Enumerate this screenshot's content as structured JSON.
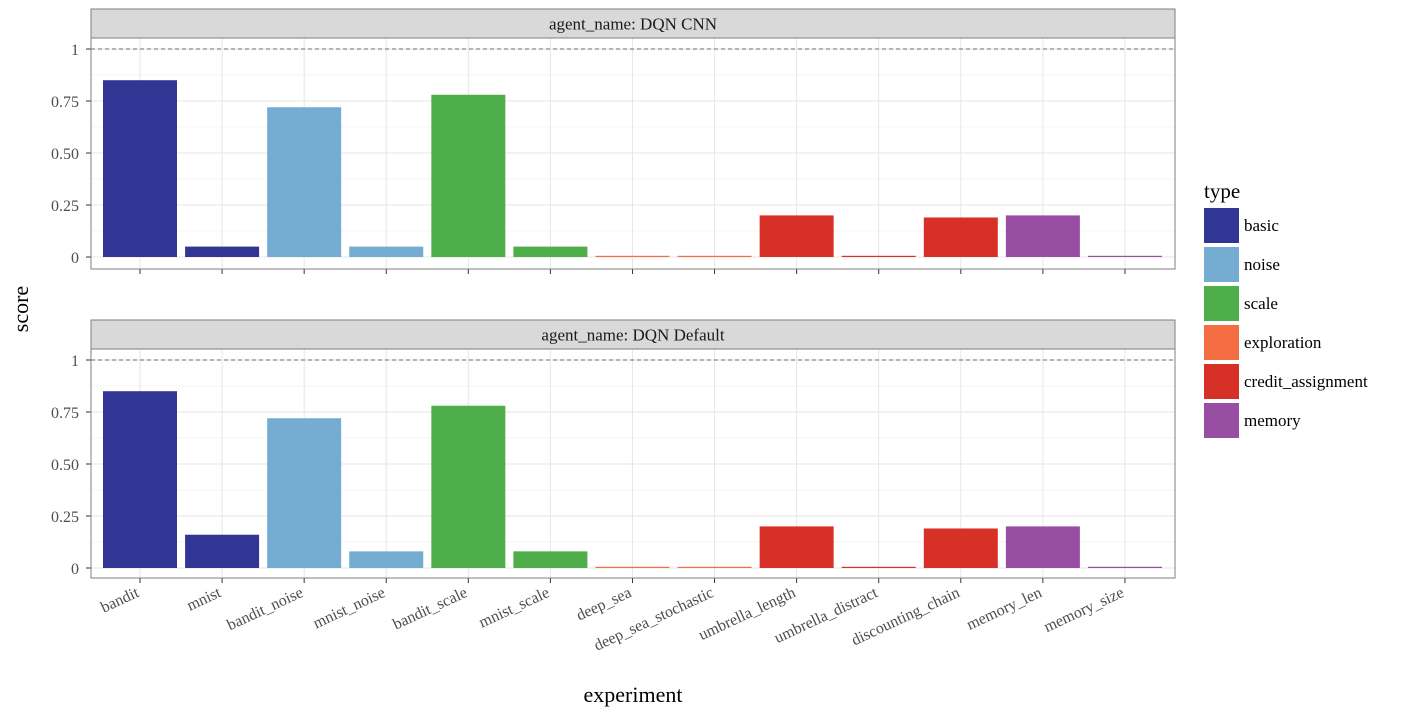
{
  "chart_data": {
    "type": "bar",
    "xlabel": "experiment",
    "ylabel": "score",
    "ylim": [
      0,
      1
    ],
    "yticks": [
      0,
      0.25,
      0.5,
      0.75,
      1
    ],
    "ytick_labels": [
      "0",
      "0.25",
      "0.50",
      "0.75",
      "1"
    ],
    "reference_line": 1,
    "grid": true,
    "legend": {
      "title": "type",
      "position": "right",
      "items": [
        {
          "label": "basic",
          "color": "#313695"
        },
        {
          "label": "noise",
          "color": "#74add1"
        },
        {
          "label": "scale",
          "color": "#4dae4a"
        },
        {
          "label": "exploration",
          "color": "#f46d43"
        },
        {
          "label": "credit_assignment",
          "color": "#d73027"
        },
        {
          "label": "memory",
          "color": "#984ea3"
        }
      ]
    },
    "categories": [
      "bandit",
      "mnist",
      "bandit_noise",
      "mnist_noise",
      "bandit_scale",
      "mnist_scale",
      "deep_sea",
      "deep_sea_stochastic",
      "umbrella_length",
      "umbrella_distract",
      "discounting_chain",
      "memory_len",
      "memory_size"
    ],
    "category_types": [
      "basic",
      "basic",
      "noise",
      "noise",
      "scale",
      "scale",
      "exploration",
      "exploration",
      "credit_assignment",
      "credit_assignment",
      "credit_assignment",
      "memory",
      "memory"
    ],
    "facets": [
      {
        "strip_label": "agent_name: DQN CNN",
        "values": [
          0.85,
          0.05,
          0.72,
          0.05,
          0.78,
          0.05,
          0.0,
          0.0,
          0.2,
          0.0,
          0.19,
          0.2,
          0.0
        ]
      },
      {
        "strip_label": "agent_name: DQN Default",
        "values": [
          0.85,
          0.16,
          0.72,
          0.08,
          0.78,
          0.08,
          0.0,
          0.0,
          0.2,
          0.0,
          0.19,
          0.2,
          0.0
        ]
      }
    ]
  }
}
